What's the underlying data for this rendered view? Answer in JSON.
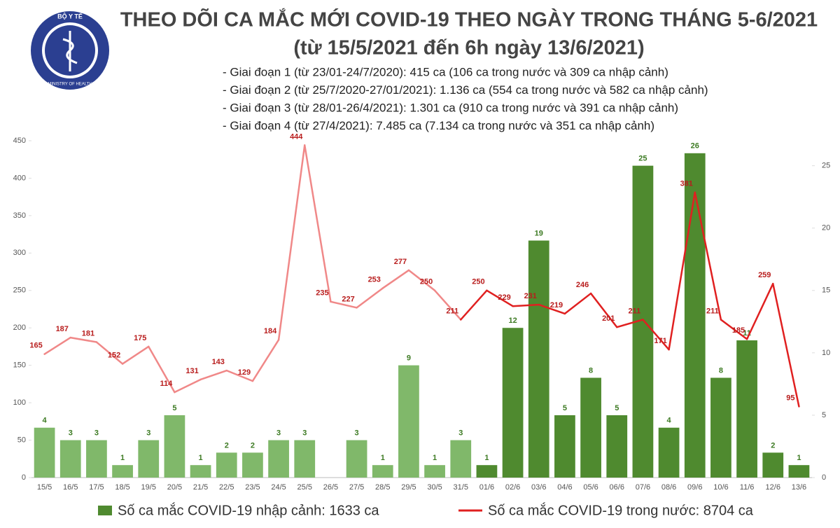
{
  "logo": {
    "top": "BỘ Y TẾ",
    "bottom": "MINISTRY OF HEALTH"
  },
  "chart_data": {
    "type": "bar-line",
    "title": "THEO DÕI CA MẮC MỚI COVID-19 THEO NGÀY TRONG THÁNG 5-6/2021",
    "subtitle": "(từ 15/5/2021 đến 6h ngày 13/6/2021)",
    "annotations": [
      "- Giai đoạn 1 (từ 23/01-24/7/2020): 415 ca (106 ca trong nước và 309 ca nhập cảnh)",
      "- Giai đoạn 2 (từ 25/7/2020-27/01/2021): 1.136 ca (554 ca trong nước và 582 ca nhập cảnh)",
      "- Giai đoạn 3 (từ 28/01-26/4/2021): 1.301 ca (910 ca trong nước và 391 ca nhập cảnh)",
      "- Giai đoạn 4 (từ 27/4/2021): 7.485 ca (7.134 ca trong nước và 351 ca nhập cảnh)"
    ],
    "categories": [
      "15/5",
      "16/5",
      "17/5",
      "18/5",
      "19/5",
      "20/5",
      "21/5",
      "22/5",
      "23/5",
      "24/5",
      "25/5",
      "26/5",
      "27/5",
      "28/5",
      "29/5",
      "30/5",
      "31/5",
      "01/6",
      "02/6",
      "03/6",
      "04/6",
      "05/6",
      "06/6",
      "07/6",
      "08/6",
      "09/6",
      "10/6",
      "11/6",
      "12/6",
      "13/6"
    ],
    "series": [
      {
        "name": "Số ca mắc COVID-19 nhập cảnh: 1633 ca",
        "kind": "bar",
        "axis": "y2",
        "color": "#4f8a2f",
        "colors": [
          "#80b86a",
          "#80b86a",
          "#80b86a",
          "#80b86a",
          "#80b86a",
          "#80b86a",
          "#80b86a",
          "#80b86a",
          "#80b86a",
          "#80b86a",
          "#80b86a",
          "#80b86a",
          "#80b86a",
          "#80b86a",
          "#80b86a",
          "#80b86a",
          "#80b86a",
          "#4f8a2f",
          "#4f8a2f",
          "#4f8a2f",
          "#4f8a2f",
          "#4f8a2f",
          "#4f8a2f",
          "#4f8a2f",
          "#4f8a2f",
          "#4f8a2f",
          "#4f8a2f",
          "#4f8a2f",
          "#4f8a2f",
          "#4f8a2f"
        ],
        "values": [
          4,
          3,
          3,
          1,
          3,
          5,
          1,
          2,
          2,
          3,
          3,
          null,
          3,
          1,
          9,
          1,
          3,
          1,
          12,
          19,
          5,
          8,
          5,
          25,
          4,
          26,
          8,
          11,
          2,
          1
        ]
      },
      {
        "name": "Số ca mắc COVID-19 trong nước: 8704 ca",
        "kind": "line",
        "color": "#e02020",
        "colors": [
          "#f08888",
          "#f08888",
          "#f08888",
          "#f08888",
          "#f08888",
          "#f08888",
          "#f08888",
          "#f08888",
          "#f08888",
          "#f08888",
          "#f08888",
          "#f08888",
          "#f08888",
          "#f08888",
          "#f08888",
          "#f08888",
          "#f08888",
          "#e02020",
          "#e02020",
          "#e02020",
          "#e02020",
          "#e02020",
          "#e02020",
          "#e02020",
          "#e02020",
          "#e02020",
          "#e02020",
          "#e02020",
          "#e02020",
          "#e02020"
        ],
        "values": [
          165,
          187,
          181,
          152,
          175,
          114,
          131,
          143,
          129,
          184,
          444,
          235,
          227,
          253,
          277,
          250,
          211,
          250,
          229,
          231,
          219,
          246,
          201,
          211,
          171,
          381,
          211,
          185,
          259,
          95
        ]
      }
    ],
    "ylim": [
      0,
      450
    ],
    "yticks": [
      0,
      50,
      100,
      150,
      200,
      250,
      300,
      350,
      400,
      450
    ],
    "y2lim": [
      0,
      27
    ],
    "y2ticks": [
      0,
      5,
      10,
      15,
      20,
      25
    ]
  }
}
